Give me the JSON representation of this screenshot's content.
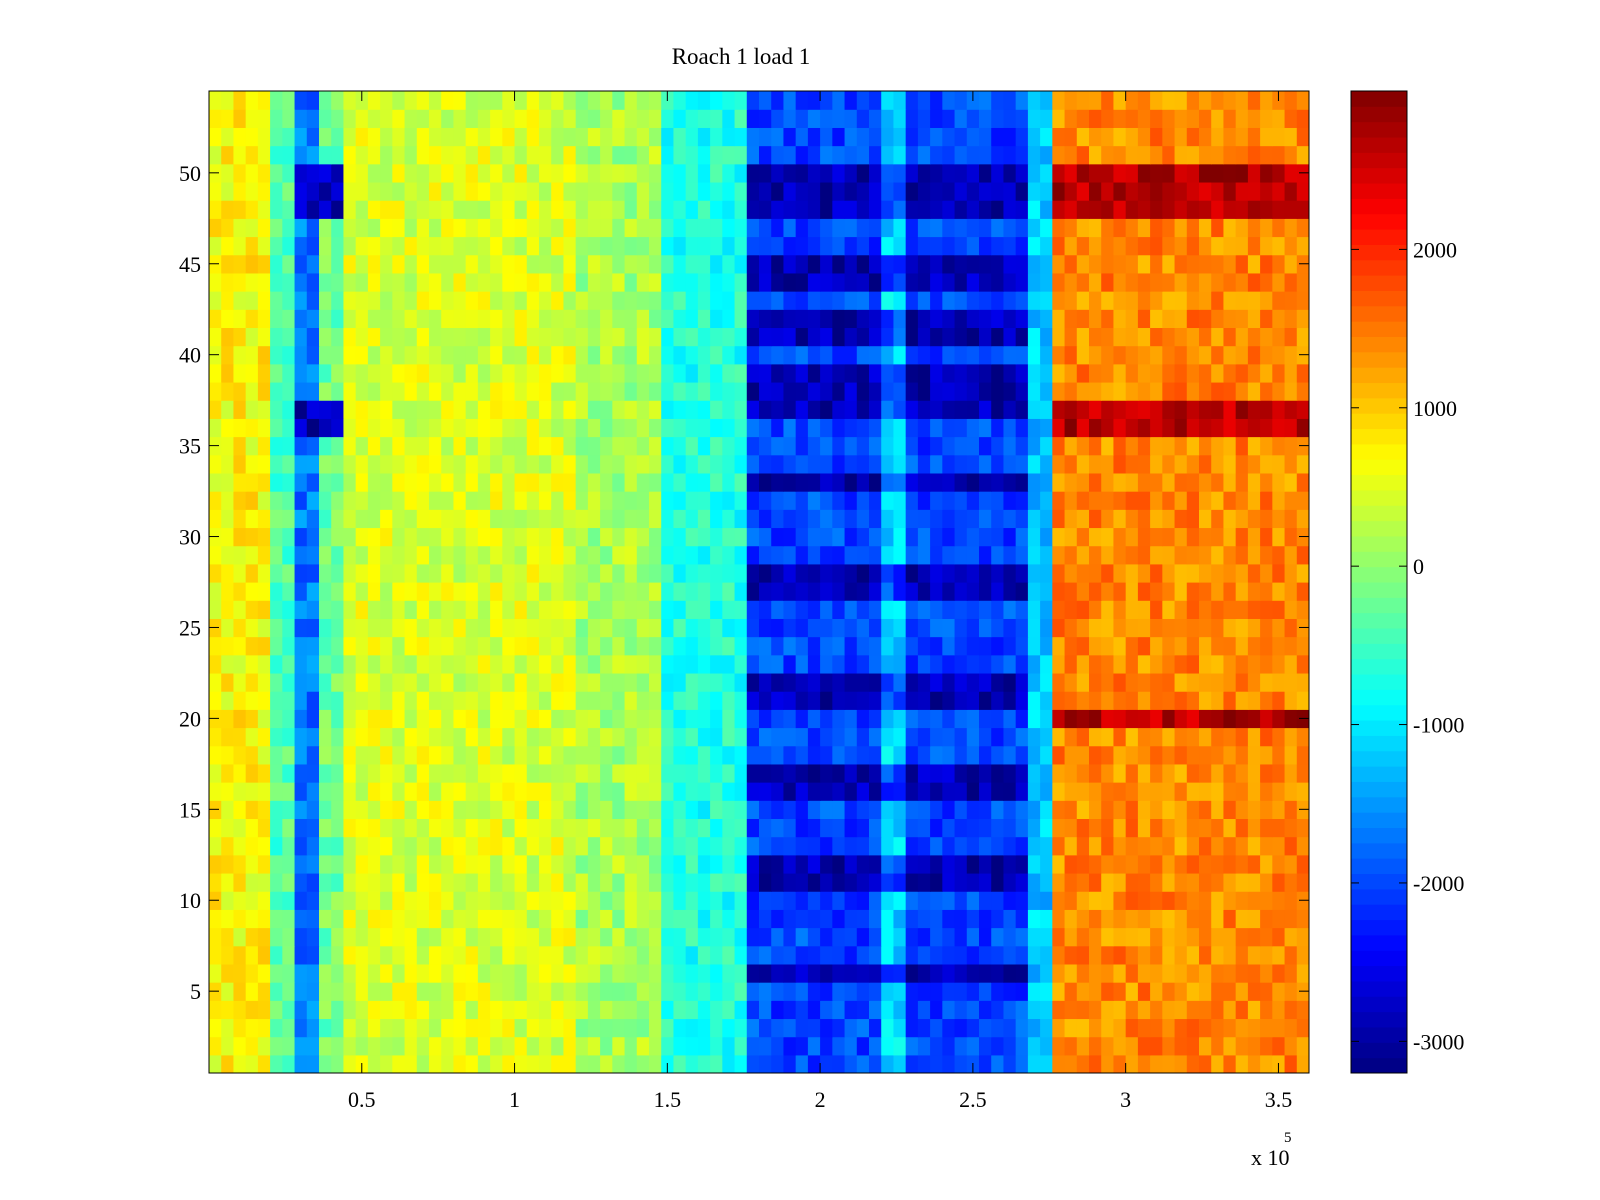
{
  "chart_data": {
    "type": "heatmap",
    "title": "Roach 1 load 1",
    "xlabel": "",
    "ylabel": "",
    "x_multiplier_label": {
      "base": "x 10",
      "exponent": "5"
    },
    "xlim": [
      0,
      360000
    ],
    "ylim": [
      0.5,
      54.5
    ],
    "x_ticks": [
      {
        "value": 50000,
        "label": "0.5"
      },
      {
        "value": 100000,
        "label": "1"
      },
      {
        "value": 150000,
        "label": "1.5"
      },
      {
        "value": 200000,
        "label": "2"
      },
      {
        "value": 250000,
        "label": "2.5"
      },
      {
        "value": 300000,
        "label": "3"
      },
      {
        "value": 350000,
        "label": "3.5"
      }
    ],
    "y_ticks": [
      {
        "value": 5,
        "label": "5"
      },
      {
        "value": 10,
        "label": "10"
      },
      {
        "value": 15,
        "label": "15"
      },
      {
        "value": 20,
        "label": "20"
      },
      {
        "value": 25,
        "label": "25"
      },
      {
        "value": 30,
        "label": "30"
      },
      {
        "value": 35,
        "label": "35"
      },
      {
        "value": 40,
        "label": "40"
      },
      {
        "value": 45,
        "label": "45"
      },
      {
        "value": 50,
        "label": "50"
      }
    ],
    "colorbar": {
      "colormap": "jet",
      "clim": [
        -3200,
        3000
      ],
      "ticks": [
        {
          "value": 2000,
          "label": "2000"
        },
        {
          "value": 1000,
          "label": "1000"
        },
        {
          "value": 0,
          "label": "0"
        },
        {
          "value": -1000,
          "label": "-1000"
        },
        {
          "value": -2000,
          "label": "-2000"
        },
        {
          "value": -3000,
          "label": "-3000"
        }
      ]
    },
    "rows": 54,
    "columns_approx": 90,
    "value_profile": {
      "description_of_units": "x in samples, y in channel index, color in signal value",
      "segments": [
        {
          "x_start": 0,
          "x_end": 22000,
          "value": 700
        },
        {
          "x_start": 22000,
          "x_end": 28000,
          "value": -400
        },
        {
          "x_start": 28000,
          "x_end": 36000,
          "value": -1700
        },
        {
          "x_start": 36000,
          "x_end": 45000,
          "value": -200
        },
        {
          "x_start": 45000,
          "x_end": 120000,
          "value": 450
        },
        {
          "x_start": 120000,
          "x_end": 150000,
          "value": 150
        },
        {
          "x_start": 150000,
          "x_end": 175000,
          "value": -700
        },
        {
          "x_start": 175000,
          "x_end": 270000,
          "value": -2000
        },
        {
          "x_start": 270000,
          "x_end": 278000,
          "value": -1200
        },
        {
          "x_start": 278000,
          "x_end": 360000,
          "value": 1400
        }
      ],
      "hot_rows": [
        20,
        36,
        37,
        48,
        49,
        50
      ],
      "hot_row_late_value": 2700,
      "deep_blue_rows_mid": [
        6,
        11,
        12,
        16,
        17,
        21,
        22,
        27,
        28,
        33,
        37,
        38,
        39,
        41,
        42,
        44,
        45,
        48,
        49,
        50
      ],
      "deep_blue_mid_value": -2900
    }
  }
}
